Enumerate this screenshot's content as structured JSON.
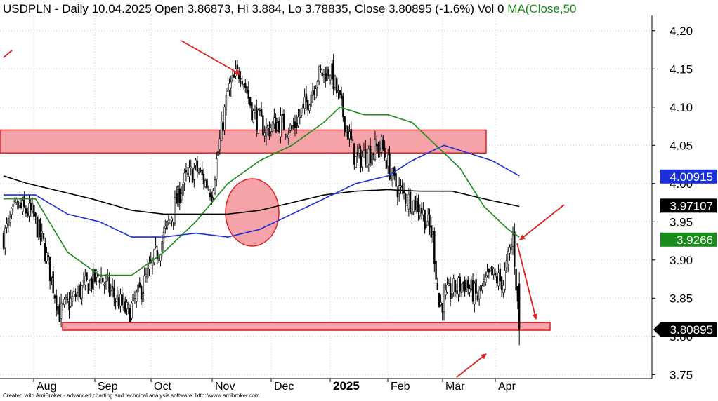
{
  "header": {
    "title": "USDPLN - Daily 10.04.2025 Open 3.86873, Hi 3.884, Lo 3.78835, Close 3.80895 (-1.6%) Vol 0",
    "ma_label": "MA(Close,50"
  },
  "footer": "Created with AmiBroker - advanced charting and technical analysis software. http://www.amibroker.com",
  "colors": {
    "candle": "#000000",
    "ma50": "#1a8a1a",
    "ma100": "#1a2fd6",
    "ma200": "#000000",
    "zone_fill": "#f5a3a8",
    "zone_stroke": "#e02020",
    "arrow": "#e02020"
  },
  "chart_data": {
    "type": "candlestick",
    "ylim": [
      3.75,
      4.22
    ],
    "yticks": [
      "4.20",
      "4.15",
      "4.10",
      "4.05",
      "4.00",
      "3.95",
      "3.90",
      "3.85",
      "3.80",
      "3.75"
    ],
    "xticks": [
      "Aug",
      "Sep",
      "Oct",
      "Nov",
      "Dec",
      "2025",
      "Feb",
      "Mar",
      "Apr"
    ],
    "price_labels": [
      {
        "label": "4.00915",
        "value": 4.00915,
        "series": "ma100"
      },
      {
        "label": "3.97107",
        "value": 3.97107,
        "series": "ma200"
      },
      {
        "label": "3.9266",
        "value": 3.9266,
        "series": "ma50"
      },
      {
        "label": "3.80895",
        "value": 3.80895,
        "series": "close"
      }
    ],
    "last_candle": {
      "open": 3.86873,
      "high": 3.884,
      "low": 3.78835,
      "close": 3.80895
    },
    "close_anchors": [
      [
        0,
        3.93
      ],
      [
        8,
        3.97
      ],
      [
        18,
        3.96
      ],
      [
        25,
        3.92
      ],
      [
        35,
        3.83
      ],
      [
        48,
        3.86
      ],
      [
        60,
        3.88
      ],
      [
        70,
        3.85
      ],
      [
        78,
        3.83
      ],
      [
        88,
        3.87
      ],
      [
        100,
        3.93
      ],
      [
        112,
        4.0
      ],
      [
        120,
        4.02
      ],
      [
        130,
        3.99
      ],
      [
        140,
        4.12
      ],
      [
        148,
        4.15
      ],
      [
        156,
        4.09
      ],
      [
        164,
        4.07
      ],
      [
        172,
        4.08
      ],
      [
        180,
        4.07
      ],
      [
        188,
        4.1
      ],
      [
        196,
        4.14
      ],
      [
        204,
        4.15
      ],
      [
        212,
        4.09
      ],
      [
        220,
        4.03
      ],
      [
        228,
        4.04
      ],
      [
        236,
        4.05
      ],
      [
        244,
        4.0
      ],
      [
        252,
        3.98
      ],
      [
        260,
        3.97
      ],
      [
        268,
        3.93
      ],
      [
        272,
        3.84
      ],
      [
        280,
        3.86
      ],
      [
        288,
        3.87
      ],
      [
        296,
        3.85
      ],
      [
        304,
        3.88
      ],
      [
        312,
        3.87
      ],
      [
        318,
        3.93
      ],
      [
        322,
        3.81
      ]
    ],
    "ma50": [
      [
        0,
        3.98
      ],
      [
        20,
        3.98
      ],
      [
        40,
        3.91
      ],
      [
        60,
        3.88
      ],
      [
        80,
        3.88
      ],
      [
        100,
        3.91
      ],
      [
        120,
        3.95
      ],
      [
        140,
        4.0
      ],
      [
        160,
        4.03
      ],
      [
        180,
        4.05
      ],
      [
        200,
        4.08
      ],
      [
        210,
        4.1
      ],
      [
        225,
        4.09
      ],
      [
        240,
        4.09
      ],
      [
        255,
        4.08
      ],
      [
        270,
        4.05
      ],
      [
        285,
        4.02
      ],
      [
        300,
        3.97
      ],
      [
        315,
        3.94
      ],
      [
        322,
        3.93
      ]
    ],
    "ma100": [
      [
        0,
        3.985
      ],
      [
        20,
        3.985
      ],
      [
        40,
        3.96
      ],
      [
        60,
        3.95
      ],
      [
        80,
        3.93
      ],
      [
        100,
        3.93
      ],
      [
        120,
        3.935
      ],
      [
        140,
        3.93
      ],
      [
        160,
        3.94
      ],
      [
        180,
        3.96
      ],
      [
        200,
        3.98
      ],
      [
        220,
        4.0
      ],
      [
        240,
        4.01
      ],
      [
        255,
        4.03
      ],
      [
        265,
        4.04
      ],
      [
        275,
        4.05
      ],
      [
        290,
        4.04
      ],
      [
        305,
        4.03
      ],
      [
        322,
        4.01
      ]
    ],
    "ma200": [
      [
        0,
        4.01
      ],
      [
        15,
        4.0
      ],
      [
        35,
        3.99
      ],
      [
        55,
        3.98
      ],
      [
        80,
        3.965
      ],
      [
        100,
        3.96
      ],
      [
        120,
        3.96
      ],
      [
        140,
        3.96
      ],
      [
        160,
        3.965
      ],
      [
        180,
        3.975
      ],
      [
        200,
        3.985
      ],
      [
        220,
        3.99
      ],
      [
        240,
        3.992
      ],
      [
        260,
        3.99
      ],
      [
        280,
        3.99
      ],
      [
        300,
        3.98
      ],
      [
        322,
        3.97
      ]
    ]
  }
}
